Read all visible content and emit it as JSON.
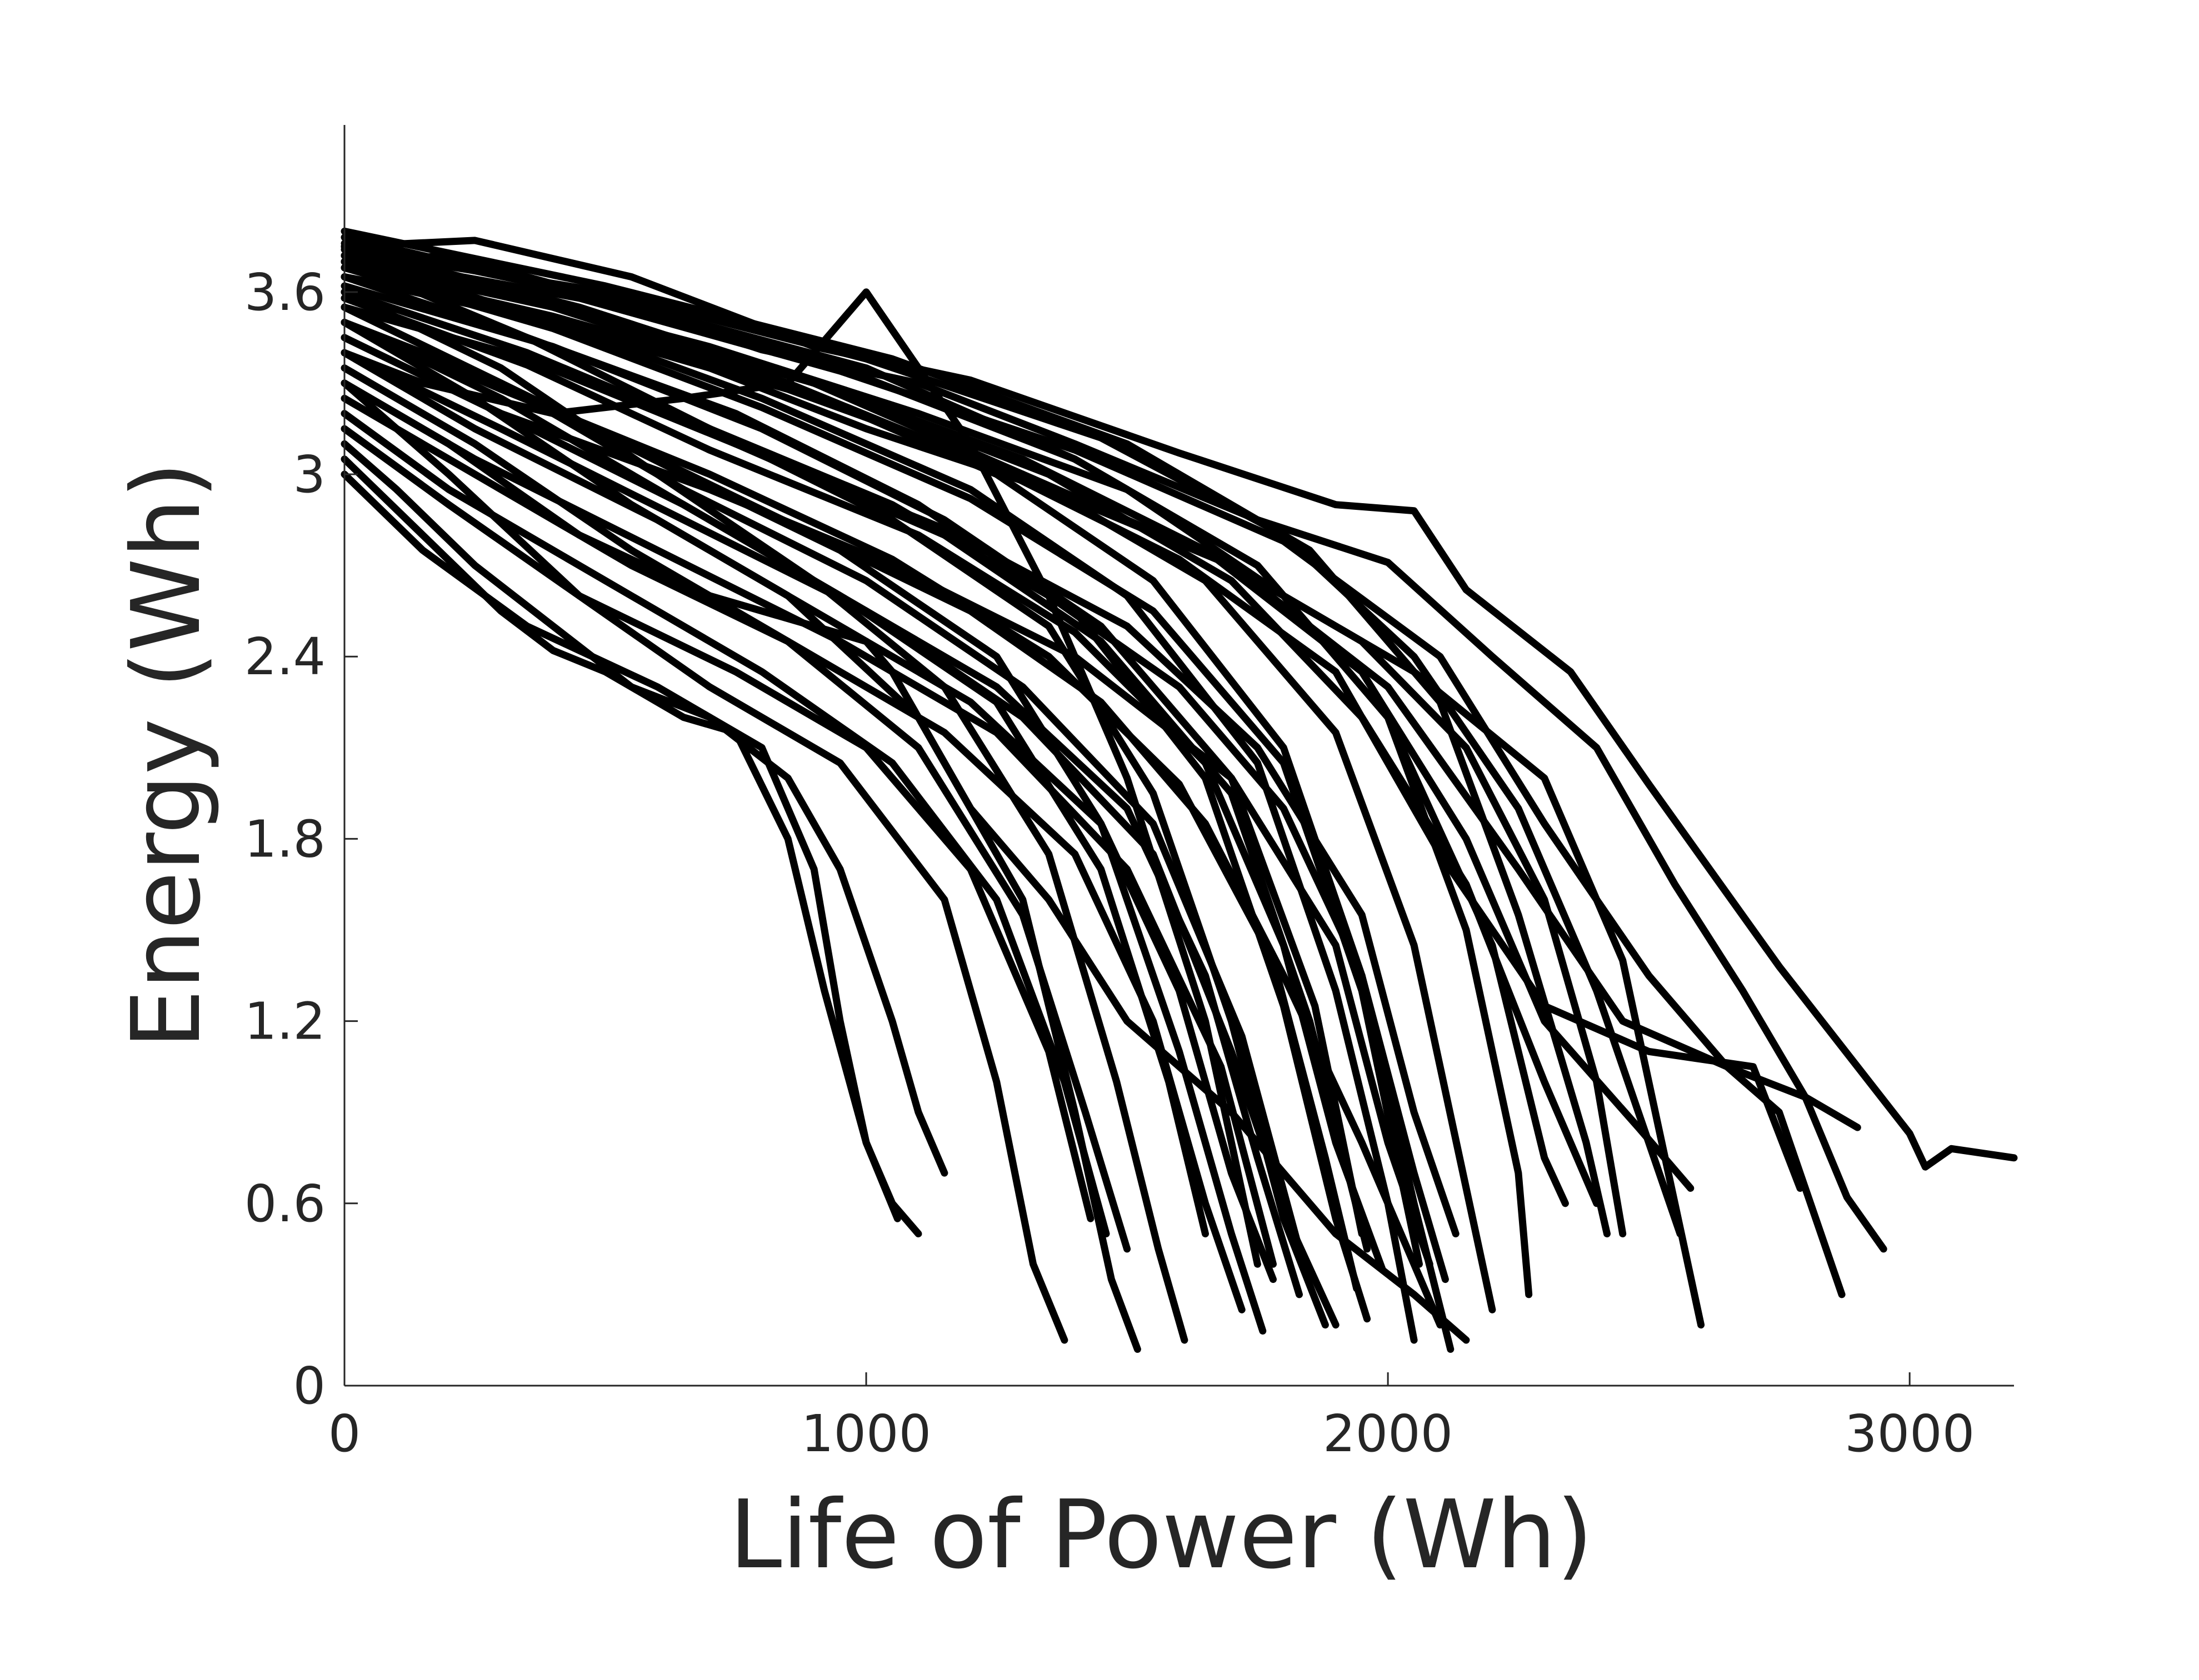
{
  "chart_data": {
    "type": "line",
    "title": "",
    "xlabel": "Life of Power (Wh)",
    "ylabel": "Energy (Wh)",
    "xlim": [
      0,
      3200
    ],
    "ylim": [
      0,
      4.15
    ],
    "xticks": [
      0,
      1000,
      2000,
      3000
    ],
    "xtick_labels": [
      "0",
      "1000",
      "2000",
      "3000"
    ],
    "yticks": [
      0,
      0.6,
      1.2,
      1.8,
      2.4,
      3,
      3.6
    ],
    "ytick_labels": [
      "0",
      "0.6",
      "1.2",
      "1.8",
      "2.4",
      "3",
      "3.6"
    ],
    "grid": false,
    "line_color": "#000000",
    "series": [
      {
        "x": [
          0,
          250,
          550,
          900,
          1200,
          1600,
          1900,
          2050,
          2150,
          2350,
          2500,
          2750,
          3000,
          3030,
          3080,
          3200
        ],
        "y": [
          3.75,
          3.77,
          3.65,
          3.42,
          3.31,
          3.07,
          2.9,
          2.88,
          2.62,
          2.35,
          1.98,
          1.38,
          0.83,
          0.72,
          0.78,
          0.75
        ]
      },
      {
        "x": [
          0,
          200,
          500,
          800,
          1100,
          1400,
          1750,
          2000,
          2200,
          2400,
          2550,
          2680,
          2800,
          2880,
          2950
        ],
        "y": [
          3.7,
          3.72,
          3.58,
          3.41,
          3.3,
          3.1,
          2.85,
          2.71,
          2.4,
          2.1,
          1.65,
          1.3,
          0.95,
          0.62,
          0.45
        ]
      },
      {
        "x": [
          0,
          300,
          700,
          1100,
          1500,
          1800,
          2050,
          2300,
          2450,
          2550,
          2600
        ],
        "y": [
          3.72,
          3.6,
          3.42,
          3.2,
          2.95,
          2.6,
          2.35,
          2.0,
          1.4,
          0.6,
          0.2
        ]
      },
      {
        "x": [
          0,
          300,
          700,
          1000,
          1350,
          1700,
          1950,
          2150,
          2300,
          2400,
          2450
        ],
        "y": [
          3.65,
          3.55,
          3.35,
          3.15,
          2.95,
          2.7,
          2.45,
          2.1,
          1.6,
          1.0,
          0.5
        ]
      },
      {
        "x": [
          0,
          150,
          350,
          600,
          800,
          900,
          950,
          1000,
          1050,
          1100
        ],
        "y": [
          3.0,
          2.75,
          2.5,
          2.3,
          2.1,
          1.7,
          1.2,
          0.8,
          0.6,
          0.5
        ]
      },
      {
        "x": [
          0,
          150,
          300,
          400,
          500,
          650,
          750,
          850,
          920,
          1000,
          1060
        ],
        "y": [
          3.05,
          2.8,
          2.55,
          2.42,
          2.35,
          2.2,
          2.15,
          1.8,
          1.3,
          0.8,
          0.55
        ]
      },
      {
        "x": [
          0,
          100,
          250,
          400,
          550,
          700,
          850,
          950,
          1050,
          1100,
          1150
        ],
        "y": [
          3.1,
          2.95,
          2.7,
          2.5,
          2.3,
          2.2,
          2.0,
          1.7,
          1.2,
          0.9,
          0.7
        ]
      },
      {
        "x": [
          0,
          200,
          450,
          700,
          950,
          1150,
          1250,
          1320,
          1380
        ],
        "y": [
          3.3,
          3.0,
          2.6,
          2.3,
          2.05,
          1.6,
          1.0,
          0.4,
          0.15
        ]
      },
      {
        "x": [
          0,
          250,
          550,
          850,
          1100,
          1300,
          1400,
          1470,
          1520
        ],
        "y": [
          3.5,
          3.25,
          2.9,
          2.6,
          2.2,
          1.6,
          0.9,
          0.35,
          0.12
        ]
      },
      {
        "x": [
          0,
          300,
          600,
          900,
          1150,
          1350,
          1480,
          1560,
          1610
        ],
        "y": [
          3.6,
          3.35,
          3.0,
          2.65,
          2.3,
          1.75,
          1.0,
          0.45,
          0.15
        ]
      },
      {
        "x": [
          0,
          300,
          650,
          950,
          1250,
          1450,
          1600,
          1700,
          1760
        ],
        "y": [
          3.55,
          3.3,
          3.0,
          2.75,
          2.4,
          1.85,
          1.1,
          0.5,
          0.18
        ]
      },
      {
        "x": [
          0,
          350,
          700,
          1050,
          1350,
          1550,
          1700,
          1800,
          1880
        ],
        "y": [
          3.7,
          3.45,
          3.15,
          2.85,
          2.5,
          1.95,
          1.2,
          0.55,
          0.2
        ]
      },
      {
        "x": [
          0,
          350,
          750,
          1100,
          1400,
          1650,
          1800,
          1900,
          1960
        ],
        "y": [
          3.65,
          3.45,
          3.2,
          2.9,
          2.55,
          2.0,
          1.25,
          0.55,
          0.22
        ]
      },
      {
        "x": [
          0,
          400,
          800,
          1200,
          1500,
          1750,
          1900,
          2000,
          2050
        ],
        "y": [
          3.72,
          3.5,
          3.25,
          2.95,
          2.6,
          2.05,
          1.3,
          0.6,
          0.15
        ]
      },
      {
        "x": [
          0,
          400,
          850,
          1250,
          1550,
          1800,
          1950,
          2050,
          2120
        ],
        "y": [
          3.75,
          3.55,
          3.3,
          3.0,
          2.65,
          2.1,
          1.35,
          0.6,
          0.12
        ]
      },
      {
        "x": [
          0,
          300,
          650,
          1000,
          1300,
          1550,
          1700,
          1820,
          1900
        ],
        "y": [
          3.4,
          3.15,
          2.85,
          2.55,
          2.2,
          1.75,
          1.1,
          0.5,
          0.2
        ]
      },
      {
        "x": [
          0,
          250,
          550,
          850,
          1100,
          1300,
          1420,
          1500
        ],
        "y": [
          3.35,
          3.1,
          2.75,
          2.45,
          2.1,
          1.55,
          0.9,
          0.45
        ]
      },
      {
        "x": [
          0,
          300,
          600,
          950,
          1250,
          1450,
          1580,
          1650
        ],
        "y": [
          3.5,
          3.25,
          2.95,
          2.6,
          2.25,
          1.7,
          1.0,
          0.5
        ]
      },
      {
        "x": [
          0,
          350,
          750,
          1150,
          1450,
          1700,
          1850,
          1960
        ],
        "y": [
          3.6,
          3.4,
          3.1,
          2.8,
          2.45,
          1.95,
          1.2,
          0.45
        ]
      },
      {
        "x": [
          0,
          400,
          800,
          1200,
          1550,
          1800,
          1950,
          2060
        ],
        "y": [
          3.68,
          3.48,
          3.22,
          2.92,
          2.55,
          2.05,
          1.3,
          0.4
        ]
      },
      {
        "x": [
          0,
          450,
          900,
          1300,
          1650,
          1900,
          2050,
          2150,
          2200
        ],
        "y": [
          3.75,
          3.55,
          3.3,
          3.0,
          2.65,
          2.15,
          1.45,
          0.65,
          0.25
        ]
      },
      {
        "x": [
          0,
          450,
          950,
          1400,
          1750,
          2000,
          2150,
          2250,
          2270
        ],
        "y": [
          3.78,
          3.6,
          3.35,
          3.05,
          2.7,
          2.2,
          1.5,
          0.7,
          0.3
        ]
      },
      {
        "x": [
          0,
          300,
          700,
          1050,
          1400,
          1700,
          1900,
          2000,
          2080
        ],
        "y": [
          3.45,
          3.2,
          2.95,
          2.7,
          2.4,
          2.0,
          1.45,
          0.8,
          0.4
        ]
      },
      {
        "x": [
          0,
          250,
          600,
          950,
          1250,
          1500,
          1680,
          1780
        ],
        "y": [
          3.3,
          3.05,
          2.75,
          2.45,
          2.15,
          1.7,
          1.05,
          0.4
        ]
      },
      {
        "x": [
          0,
          300,
          650,
          1000,
          1300,
          1550,
          1720,
          1830
        ],
        "y": [
          3.55,
          3.3,
          2.95,
          2.65,
          2.3,
          1.85,
          1.15,
          0.45
        ]
      },
      {
        "x": [
          0,
          400,
          800,
          1150,
          1450,
          1700,
          1860,
          1950
        ],
        "y": [
          3.62,
          3.42,
          3.15,
          2.85,
          2.5,
          2.0,
          1.25,
          0.5
        ]
      },
      {
        "x": [
          0,
          500,
          1000,
          1400,
          1750,
          2000,
          2200,
          2300,
          2340
        ],
        "y": [
          3.76,
          3.58,
          3.35,
          3.05,
          2.7,
          2.2,
          1.45,
          0.75,
          0.6
        ]
      },
      {
        "x": [
          0,
          500,
          1050,
          1500,
          1850,
          2100,
          2250,
          2380,
          2420
        ],
        "y": [
          3.8,
          3.62,
          3.38,
          3.1,
          2.75,
          2.25,
          1.55,
          0.8,
          0.5
        ]
      },
      {
        "x": [
          0,
          400,
          900,
          1300,
          1650,
          1950,
          2150,
          2300,
          2480,
          2580
        ],
        "y": [
          3.7,
          3.55,
          3.3,
          3.05,
          2.75,
          2.35,
          1.8,
          1.2,
          0.85,
          0.65
        ]
      },
      {
        "x": [
          0,
          450,
          950,
          1400,
          1800,
          2100,
          2300,
          2500,
          2650,
          2800,
          2900
        ],
        "y": [
          3.72,
          3.58,
          3.34,
          3.08,
          2.78,
          2.4,
          1.85,
          1.35,
          1.05,
          0.95,
          0.85
        ]
      },
      {
        "x": [
          0,
          400,
          850,
          1300,
          1700,
          2000,
          2250,
          2450,
          2650,
          2750,
          2870
        ],
        "y": [
          3.65,
          3.5,
          3.28,
          3.0,
          2.7,
          2.3,
          1.7,
          1.2,
          1.05,
          0.9,
          0.3
        ]
      },
      {
        "x": [
          0,
          400,
          850,
          1250,
          1600,
          1900,
          2100,
          2300,
          2500,
          2700,
          2790
        ],
        "y": [
          3.68,
          3.52,
          3.3,
          3.02,
          2.72,
          2.35,
          1.75,
          1.25,
          1.1,
          1.05,
          0.65
        ]
      },
      {
        "x": [
          0,
          200,
          450,
          700,
          900,
          1000,
          1050,
          1100,
          1200,
          1350,
          1500,
          1700,
          1900,
          2050,
          2150
        ],
        "y": [
          3.3,
          3.1,
          2.8,
          2.6,
          2.5,
          2.45,
          2.35,
          2.2,
          1.9,
          1.6,
          1.2,
          0.9,
          0.5,
          0.3,
          0.15
        ]
      },
      {
        "x": [
          0,
          150,
          400,
          650,
          850,
          1000,
          1020,
          1080,
          1200,
          1350,
          1500,
          1650,
          1750
        ],
        "y": [
          3.4,
          3.3,
          3.2,
          3.25,
          3.3,
          3.6,
          3.55,
          3.4,
          3.1,
          2.6,
          2.0,
          1.2,
          0.4
        ]
      },
      {
        "x": [
          0,
          300,
          600,
          900,
          1200,
          1450,
          1650,
          1800,
          1950,
          2050,
          2100
        ],
        "y": [
          3.5,
          3.3,
          3.05,
          2.8,
          2.55,
          2.25,
          1.85,
          1.35,
          0.8,
          0.4,
          0.2
        ]
      },
      {
        "x": [
          0,
          350,
          700,
          1050,
          1350,
          1600,
          1800,
          1950,
          2050,
          2110
        ],
        "y": [
          3.6,
          3.4,
          3.15,
          2.9,
          2.6,
          2.3,
          1.9,
          1.35,
          0.7,
          0.35
        ]
      },
      {
        "x": [
          0,
          250,
          550,
          850,
          1150,
          1400,
          1550,
          1650,
          1720
        ],
        "y": [
          3.25,
          3.0,
          2.7,
          2.45,
          2.15,
          1.75,
          1.2,
          0.6,
          0.25
        ]
      },
      {
        "x": [
          0,
          200,
          500,
          800,
          1050,
          1250,
          1380,
          1460
        ],
        "y": [
          3.2,
          2.95,
          2.65,
          2.35,
          2.05,
          1.6,
          1.0,
          0.5
        ]
      },
      {
        "x": [
          0,
          350,
          750,
          1150,
          1500,
          1750,
          1950,
          2050,
          2130
        ],
        "y": [
          3.55,
          3.38,
          3.1,
          2.82,
          2.5,
          2.1,
          1.55,
          0.9,
          0.5
        ]
      },
      {
        "x": [
          0,
          450,
          900,
          1350,
          1700,
          1950,
          2150,
          2300,
          2400
        ],
        "y": [
          3.7,
          3.55,
          3.3,
          3.0,
          2.65,
          2.2,
          1.65,
          1.0,
          0.6
        ]
      },
      {
        "x": [
          0,
          300,
          650,
          950,
          1250,
          1500,
          1650,
          1750,
          1830
        ],
        "y": [
          3.45,
          3.2,
          2.9,
          2.6,
          2.3,
          1.9,
          1.35,
          0.75,
          0.3
        ]
      },
      {
        "x": [
          0,
          200,
          450,
          750,
          1000,
          1200,
          1350,
          1430
        ],
        "y": [
          3.15,
          2.9,
          2.6,
          2.35,
          2.1,
          1.7,
          1.1,
          0.55
        ]
      },
      {
        "x": [
          0,
          500,
          1000,
          1450,
          1800,
          2050,
          2250,
          2400,
          2500,
          2560
        ],
        "y": [
          3.74,
          3.6,
          3.38,
          3.12,
          2.8,
          2.4,
          1.9,
          1.3,
          0.8,
          0.5
        ]
      },
      {
        "x": [
          0,
          250,
          600,
          900,
          1200,
          1450,
          1600,
          1700,
          1780
        ],
        "y": [
          3.4,
          3.15,
          2.85,
          2.55,
          2.25,
          1.85,
          1.3,
          0.7,
          0.35
        ]
      },
      {
        "x": [
          0,
          350,
          700,
          1100,
          1400,
          1650,
          1800,
          1900,
          1990
        ],
        "y": [
          3.58,
          3.36,
          3.08,
          2.8,
          2.48,
          2.05,
          1.45,
          0.8,
          0.38
        ]
      },
      {
        "x": [
          0,
          300,
          700,
          1050,
          1350,
          1600,
          1780,
          1880,
          1940
        ],
        "y": [
          3.5,
          3.28,
          3.0,
          2.72,
          2.4,
          1.98,
          1.4,
          0.75,
          0.32
        ]
      }
    ]
  }
}
